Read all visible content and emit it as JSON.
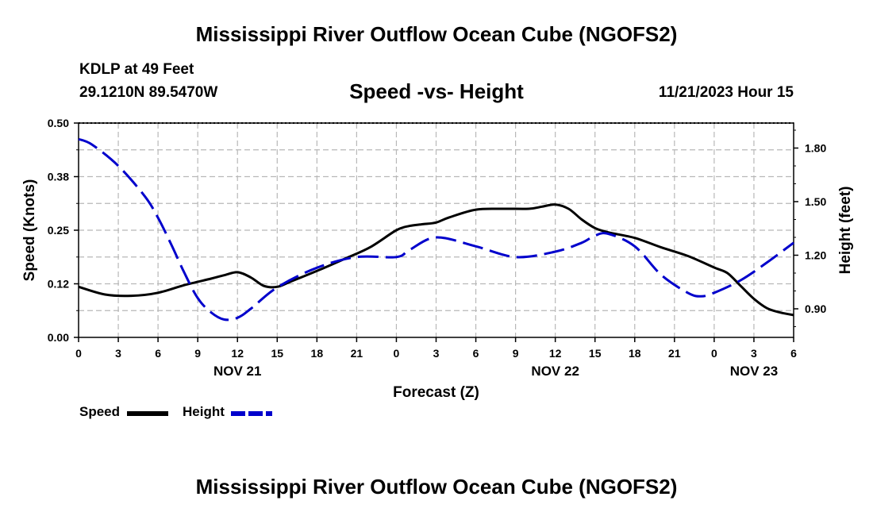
{
  "header": {
    "title": "Mississippi River Outflow Ocean Cube (NGOFS2)",
    "station_name": "KDLP at 49 Feet",
    "coordinates": "29.1210N  89.5470W",
    "subtitle": "Speed -vs- Height",
    "run_time": "11/21/2023 Hour 15"
  },
  "footer": {
    "title": "Mississippi River Outflow Ocean Cube (NGOFS2)"
  },
  "legend": {
    "items": [
      {
        "label": "Speed",
        "color": "#000000",
        "style": "solid"
      },
      {
        "label": "Height",
        "color": "#0000cc",
        "style": "dashed"
      }
    ]
  },
  "chart_data": {
    "type": "line",
    "xlabel": "Forecast (Z)",
    "x_unit": "forecast hour",
    "xlim": [
      0,
      54
    ],
    "x_ticks": [
      0,
      3,
      6,
      9,
      12,
      15,
      18,
      21,
      24,
      27,
      30,
      33,
      36,
      39,
      42,
      45,
      48,
      51,
      54
    ],
    "x_tick_labels": [
      "0",
      "3",
      "6",
      "9",
      "12",
      "15",
      "18",
      "21",
      "0",
      "3",
      "6",
      "9",
      "12",
      "15",
      "18",
      "21",
      "0",
      "3",
      "6"
    ],
    "date_labels": [
      {
        "x": 12,
        "label": "NOV 21"
      },
      {
        "x": 36,
        "label": "NOV 22"
      },
      {
        "x": 51,
        "label": "NOV 23"
      }
    ],
    "y_left": {
      "label": "Speed (Knots)",
      "lim": [
        0,
        0.5
      ],
      "ticks": [
        0,
        0.125,
        0.25,
        0.375,
        0.5
      ],
      "tick_labels": [
        "0.00",
        "0.12",
        "0.25",
        "0.38",
        "0.50"
      ]
    },
    "y_right": {
      "label": "Height (feet)",
      "lim": [
        0.74,
        1.94
      ],
      "ticks": [
        0.9,
        1.2,
        1.5,
        1.8
      ],
      "tick_labels": [
        "0.90",
        "1.20",
        "1.50",
        "1.80"
      ]
    },
    "grid": true,
    "series": [
      {
        "name": "Speed",
        "axis": "left",
        "color": "#000000",
        "dash": "solid",
        "x": [
          0,
          2,
          4,
          6,
          8,
          10,
          11,
          12,
          13,
          14,
          15,
          16,
          18,
          20,
          22,
          24,
          25,
          26,
          27,
          28,
          30,
          32,
          34,
          35,
          36,
          37,
          38,
          39,
          40,
          42,
          44,
          46,
          48,
          49,
          50,
          51,
          52,
          53,
          54
        ],
        "y": [
          0.118,
          0.1,
          0.097,
          0.104,
          0.122,
          0.137,
          0.145,
          0.152,
          0.14,
          0.12,
          0.118,
          0.13,
          0.155,
          0.182,
          0.21,
          0.25,
          0.26,
          0.264,
          0.268,
          0.28,
          0.298,
          0.3,
          0.3,
          0.305,
          0.31,
          0.3,
          0.275,
          0.255,
          0.245,
          0.232,
          0.21,
          0.19,
          0.163,
          0.15,
          0.12,
          0.09,
          0.068,
          0.058,
          0.052
        ]
      },
      {
        "name": "Height",
        "axis": "right",
        "color": "#0000cc",
        "dash": "dashed",
        "x": [
          0,
          1,
          3,
          5,
          6,
          7,
          8,
          9,
          10,
          11,
          12,
          13,
          15,
          18,
          21,
          24,
          25,
          27,
          30,
          33,
          36,
          38,
          39,
          40,
          42,
          44,
          46,
          47,
          48,
          50,
          52,
          54
        ],
        "y": [
          1.85,
          1.82,
          1.7,
          1.53,
          1.41,
          1.26,
          1.1,
          0.96,
          0.88,
          0.84,
          0.85,
          0.9,
          1.02,
          1.13,
          1.19,
          1.19,
          1.23,
          1.3,
          1.25,
          1.19,
          1.22,
          1.27,
          1.31,
          1.32,
          1.25,
          1.09,
          0.99,
          0.97,
          0.99,
          1.06,
          1.16,
          1.27
        ]
      }
    ]
  }
}
